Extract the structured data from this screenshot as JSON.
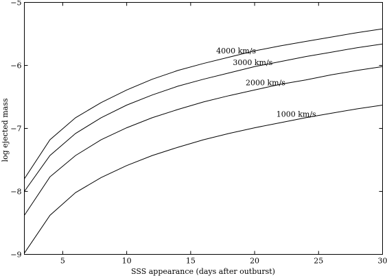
{
  "chart_data": {
    "type": "line",
    "title": "",
    "xlabel": "SSS appearance (days after outburst)",
    "ylabel": "log ejected mass",
    "xlim": [
      2,
      30
    ],
    "ylim": [
      -9,
      -5
    ],
    "x_ticks": [
      5,
      10,
      15,
      20,
      25,
      30
    ],
    "y_ticks": [
      -9,
      -8,
      -7,
      -6,
      -5
    ],
    "x_tick_labels": [
      "5",
      "10",
      "15",
      "20",
      "25",
      "30"
    ],
    "y_tick_labels": [
      "−9",
      "−8",
      "−7",
      "−6",
      "−5"
    ],
    "grid": false,
    "x": [
      2,
      4,
      6,
      8,
      10,
      12,
      14,
      16,
      18,
      20,
      22,
      24,
      26,
      28,
      30
    ],
    "series": [
      {
        "name": "4000 km/s",
        "values": [
          -7.8,
          -7.18,
          -6.83,
          -6.59,
          -6.39,
          -6.22,
          -6.08,
          -5.97,
          -5.87,
          -5.77,
          -5.69,
          -5.62,
          -5.55,
          -5.48,
          -5.42
        ]
      },
      {
        "name": "3000 km/s",
        "values": [
          -8.0,
          -7.43,
          -7.08,
          -6.83,
          -6.63,
          -6.47,
          -6.33,
          -6.22,
          -6.12,
          -6.02,
          -5.94,
          -5.86,
          -5.79,
          -5.72,
          -5.66
        ]
      },
      {
        "name": "2000 km/s",
        "values": [
          -8.38,
          -7.77,
          -7.43,
          -7.18,
          -6.99,
          -6.83,
          -6.7,
          -6.58,
          -6.48,
          -6.39,
          -6.3,
          -6.23,
          -6.15,
          -6.08,
          -6.02
        ]
      },
      {
        "name": "1000 km/s",
        "values": [
          -8.98,
          -8.38,
          -8.02,
          -7.78,
          -7.59,
          -7.43,
          -7.3,
          -7.18,
          -7.08,
          -6.99,
          -6.91,
          -6.83,
          -6.76,
          -6.69,
          -6.63
        ]
      }
    ]
  }
}
